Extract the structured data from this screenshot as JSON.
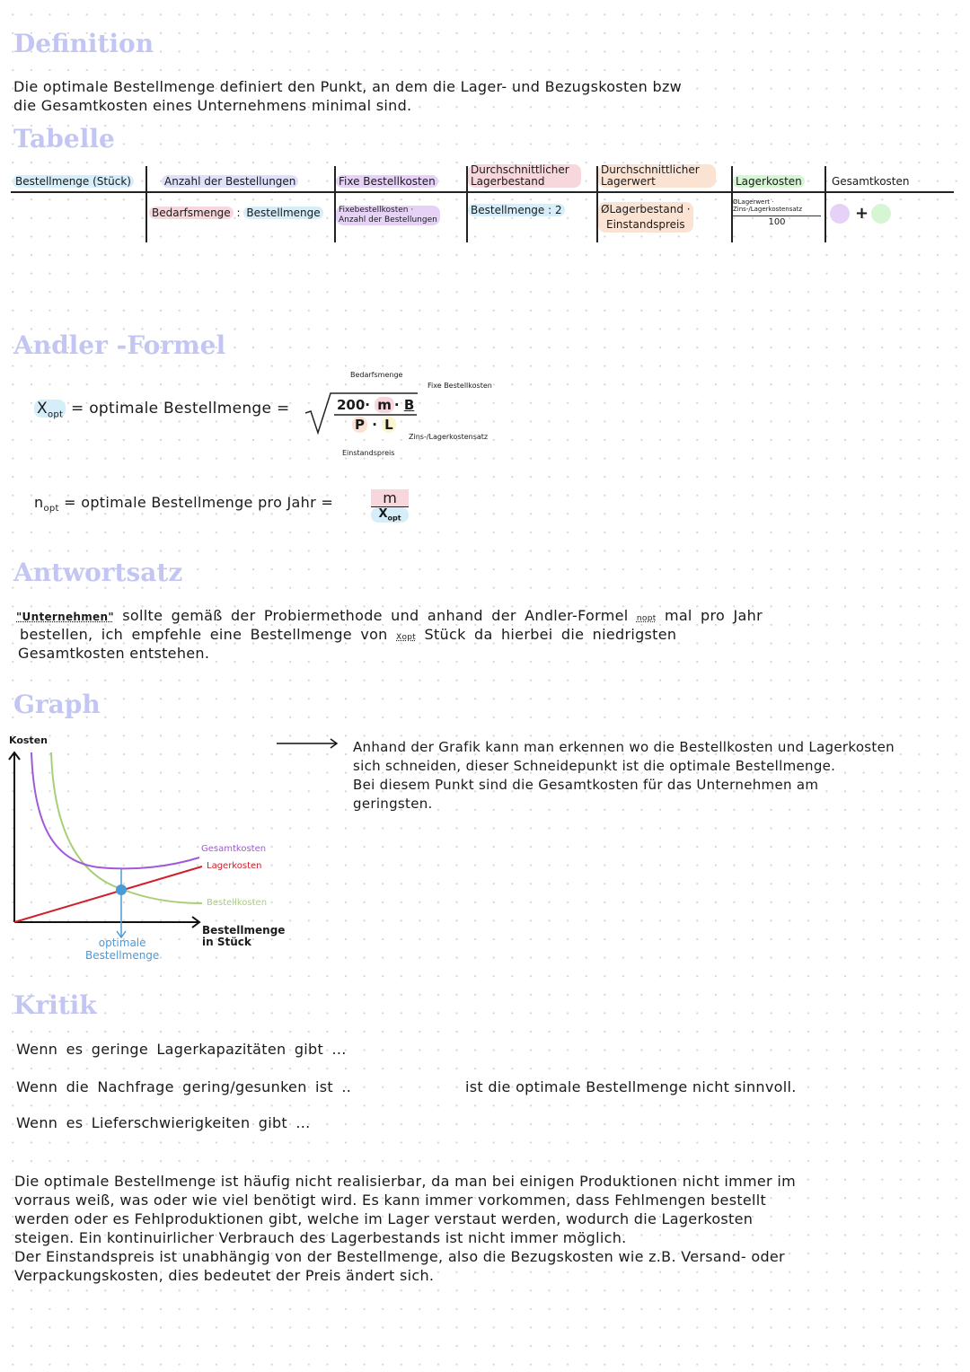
{
  "definition": {
    "heading": "Definition",
    "text_line1": "Die optimale Bestellmenge definiert den Punkt, an dem die Lager- und Bezugskosten bzw",
    "text_line2": "die Gesamtkosten eines Unternehmens minimal sind."
  },
  "table": {
    "heading": "Tabelle",
    "headers": [
      "Bestellmenge (Stück)",
      "Anzahl der Bestellungen",
      "Fixe Bestellkosten",
      "Durchschnittlicher Lagerbestand",
      "Durchschnittlicher Lagerwert",
      "Lagerkosten",
      "Gesamtkosten"
    ],
    "row": {
      "anzahl_a": "Bedarfsmenge",
      "anzahl_op": " : ",
      "anzahl_b": "Bestellmenge",
      "fixe_1": "Fixebestellkosten ·",
      "fixe_2": "Anzahl der Bestellungen",
      "lagerbestand": "Bestellmenge : 2",
      "lagerwert_1": "ØLagerbestand ·",
      "lagerwert_2": "Einstandspreis",
      "lagerkosten_num1": "ØLagerwert ·",
      "lagerkosten_num2": "Zins-/Lagerkostensatz",
      "lagerkosten_den": "100",
      "gesamt_plus": "+"
    }
  },
  "andler": {
    "heading": "Andler -Formel",
    "xopt_label": "X",
    "xopt_sub": "opt",
    "xopt_text": "= optimale Bestellmenge =",
    "numerator": {
      "c": "200·",
      "m": "m",
      "dot": "·",
      "b": "B"
    },
    "denominator": {
      "p": "P",
      "dot": "·",
      "l": "L"
    },
    "ann_bedarf": "Bedarfsmenge",
    "ann_fixe": "Fixe Bestellkosten",
    "ann_zins": "Zins-/Lagerkostensatz",
    "ann_einstand": "Einstandspreis",
    "nopt_label": "n",
    "nopt_sub": "opt",
    "nopt_text": "= optimale Bestellmenge pro Jahr =",
    "nopt_num": "m",
    "nopt_den": "X",
    "nopt_den_sub": "opt"
  },
  "antwortsatz": {
    "heading": "Antwortsatz",
    "l1_a": "\"Unternehmen\"",
    "l1_b": "sollte gemäß der Probiermethode und anhand der Andler-Formel",
    "l1_n": "nopt",
    "l1_c": "mal pro Jahr",
    "l2_a": "bestellen, ich empfehle eine Bestellmenge von",
    "l2_x": "Xopt",
    "l2_b": "Stück da hierbei die niedrigsten",
    "l3": "Gesamtkosten entstehen."
  },
  "graph": {
    "heading": "Graph",
    "y_label": "Kosten",
    "x_label_1": "Bestellmenge",
    "x_label_2": "in Stück",
    "optimum_1": "optimale",
    "optimum_2": "Bestellmenge",
    "series": [
      {
        "name": "Gesamtkosten",
        "color": "#a05ad8"
      },
      {
        "name": "Lagerkosten",
        "color": "#d0202a"
      },
      {
        "name": "Bestellkosten",
        "color": "#a8cf78"
      }
    ],
    "optimum_color": "#4a9ad8",
    "explanation": [
      "Anhand der Grafik kann man erkennen wo die Bestellkosten und Lagerkosten",
      "sich schneiden, dieser Schneidepunkt ist die optimale Bestellmenge.",
      "Bei diesem Punkt sind die Gesamtkosten für das Unternehmen am",
      "geringsten."
    ]
  },
  "kritik": {
    "heading": "Kritik",
    "l1": "Wenn es geringe Lagerkapazitäten gibt ...",
    "l2": "Wenn die Nachfrage gering/gesunken ist ..",
    "l2_right": "ist die optimale Bestellmenge nicht sinnvoll.",
    "l3": "Wenn es Lieferschwierigkeiten gibt ...",
    "paragraph": [
      "Die optimale Bestellmenge ist häufig nicht realisierbar, da man bei einigen Produktionen nicht immer im",
      "vorraus weiß, was oder wie viel benötigt wird. Es kann immer vorkommen, dass Fehlmengen bestellt",
      "werden oder es Fehlproduktionen gibt, welche im Lager verstaut werden, wodurch die Lagerkosten",
      "steigen. Ein kontinuirlicher Verbrauch des Lagerbestands ist nicht immer möglich.",
      "Der Einstandspreis ist unabhängig von der Bestellmenge, also die Bezugskosten wie z.B. Versand- oder",
      "Verpackungskosten, dies bedeutet der Preis ändert sich."
    ]
  }
}
